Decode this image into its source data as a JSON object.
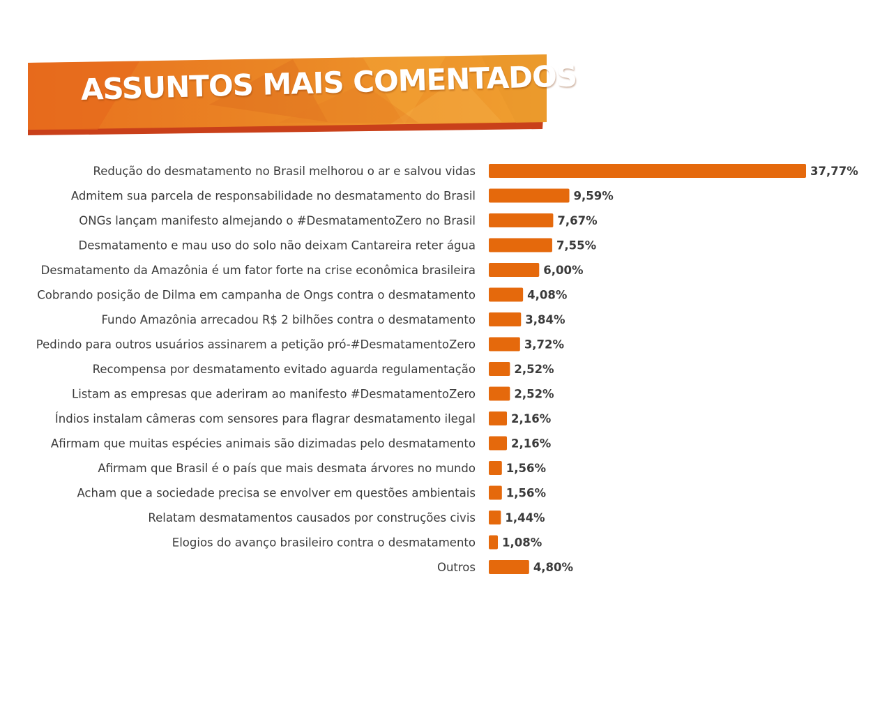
{
  "header": {
    "title": "ASSUNTOS MAIS COMENTADOS"
  },
  "colors": {
    "bar": "#e5690c",
    "banner_light": "#f0a030",
    "banner_dark": "#e0601a",
    "banner_shadow": "#c9401a",
    "text": "#3a3a3a"
  },
  "chart_data": {
    "type": "bar",
    "orientation": "horizontal",
    "title": "ASSUNTOS MAIS COMENTADOS",
    "xlabel": "",
    "ylabel": "",
    "grid": false,
    "legend": "none",
    "xlim": [
      0,
      37.77
    ],
    "categories": [
      "Redução do desmatamento no Brasil melhorou o ar e salvou vidas",
      "Admitem sua parcela de responsabilidade no desmatamento do Brasil",
      "ONGs lançam manifesto almejando o #DesmatamentoZero no Brasil",
      "Desmatamento e mau uso do solo não deixam Cantareira reter água",
      "Desmatamento da Amazônia é um fator forte na crise econômica brasileira",
      "Cobrando posição de Dilma em campanha de Ongs contra o desmatamento",
      "Fundo Amazônia arrecadou R$ 2 bilhões contra o desmatamento",
      "Pedindo para outros usuários assinarem a petição pró-#DesmatamentoZero",
      "Recompensa por desmatamento evitado aguarda regulamentação",
      "Listam as empresas que aderiram ao manifesto #DesmatamentoZero",
      "Índios instalam câmeras com sensores para flagrar desmatamento ilegal",
      "Afirmam que muitas espécies animais são dizimadas pelo desmatamento",
      "Afirmam que Brasil é o país que mais desmata árvores no mundo",
      "Acham que a sociedade precisa se envolver em questões ambientais",
      "Relatam desmatamentos causados por construções civis",
      "Elogios do avanço brasileiro contra o desmatamento",
      "Outros"
    ],
    "values": [
      37.77,
      9.59,
      7.67,
      7.55,
      6.0,
      4.08,
      3.84,
      3.72,
      2.52,
      2.52,
      2.16,
      2.16,
      1.56,
      1.56,
      1.44,
      1.08,
      4.8
    ],
    "value_labels": [
      "37,77%",
      "9,59%",
      "7,67%",
      "7,55%",
      "6,00%",
      "4,08%",
      "3,84%",
      "3,72%",
      "2,52%",
      "2,52%",
      "2,16%",
      "2,16%",
      "1,56%",
      "1,56%",
      "1,44%",
      "1,08%",
      "4,80%"
    ]
  }
}
